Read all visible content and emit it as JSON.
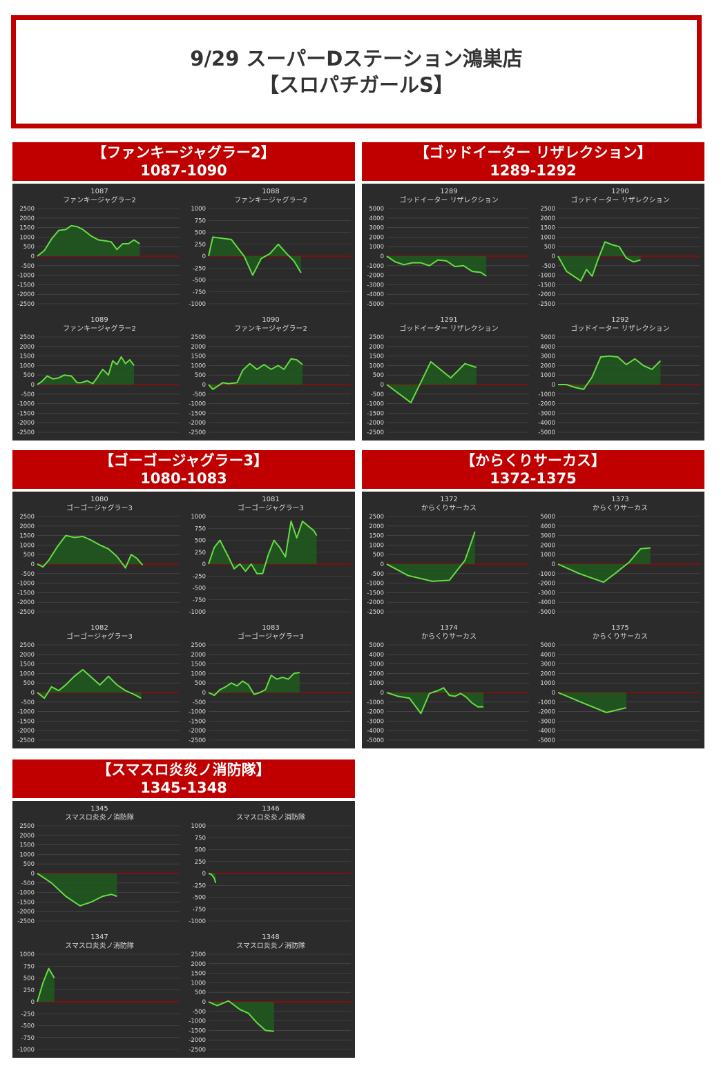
{
  "header": {
    "line1": "9/29 スーパーDステーション鴻巣店",
    "line2": "【スロパチガールS】"
  },
  "colors": {
    "accent": "#c00000",
    "panel_bg": "#2b2b2b",
    "line": "#66dd44",
    "fill": "#1e5a1e",
    "zero_line": "#b00000",
    "grid": "#505050",
    "text": "#dddddd"
  },
  "sections": [
    {
      "title": "【ファンキージャグラー2】",
      "range": "1087-1090",
      "charts": [
        {
          "num": "1087",
          "name": "ファンキージャグラー2",
          "ticks": [
            2500,
            2000,
            1500,
            1000,
            500,
            0,
            -500,
            -1000,
            -1500,
            -2000,
            -2500
          ],
          "x": [
            0,
            0.05,
            0.1,
            0.15,
            0.2,
            0.24,
            0.28,
            0.32,
            0.38,
            0.43,
            0.48,
            0.52,
            0.56,
            0.6,
            0.64,
            0.68,
            0.72
          ],
          "y": [
            0,
            300,
            900,
            1350,
            1400,
            1600,
            1550,
            1400,
            1050,
            850,
            800,
            750,
            350,
            650,
            650,
            850,
            650
          ]
        },
        {
          "num": "1088",
          "name": "ファンキージャグラー2",
          "ticks": [
            1000,
            750,
            500,
            250,
            0,
            -250,
            -500,
            -750,
            -1000
          ],
          "x": [
            0,
            0.03,
            0.16,
            0.25,
            0.31,
            0.37,
            0.43,
            0.49,
            0.55,
            0.6,
            0.65
          ],
          "y": [
            0,
            400,
            350,
            0,
            -400,
            -50,
            50,
            250,
            50,
            -100,
            -350
          ]
        },
        {
          "num": "1089",
          "name": "ファンキージャグラー2",
          "ticks": [
            2500,
            2000,
            1500,
            1000,
            500,
            0,
            -500,
            -1000,
            -1500,
            -2000,
            -2500
          ],
          "x": [
            0,
            0.03,
            0.07,
            0.11,
            0.15,
            0.19,
            0.24,
            0.28,
            0.31,
            0.35,
            0.39,
            0.42,
            0.46,
            0.5,
            0.53,
            0.56,
            0.59,
            0.62,
            0.65,
            0.68
          ],
          "y": [
            0,
            150,
            450,
            300,
            350,
            500,
            450,
            100,
            100,
            200,
            50,
            350,
            800,
            500,
            1250,
            1050,
            1450,
            1100,
            1300,
            1000
          ]
        },
        {
          "num": "1090",
          "name": "ファンキージャグラー2",
          "ticks": [
            2500,
            2000,
            1500,
            1000,
            500,
            0,
            -500,
            -1000,
            -1500,
            -2000,
            -2500
          ],
          "x": [
            0,
            0.03,
            0.1,
            0.14,
            0.2,
            0.24,
            0.29,
            0.34,
            0.39,
            0.44,
            0.49,
            0.53,
            0.58,
            0.62,
            0.66
          ],
          "y": [
            0,
            -250,
            100,
            50,
            100,
            750,
            1100,
            800,
            1050,
            800,
            1000,
            800,
            1350,
            1300,
            1050
          ]
        }
      ]
    },
    {
      "title": "【ゴッドイーター リザレクション】",
      "range": "1289-1292",
      "charts": [
        {
          "num": "1289",
          "name": "ゴッドイーター リザレクション",
          "ticks": [
            5000,
            4000,
            3000,
            2000,
            1000,
            0,
            -1000,
            -2000,
            -3000,
            -4000,
            -5000
          ],
          "x": [
            0,
            0.06,
            0.12,
            0.18,
            0.24,
            0.3,
            0.36,
            0.42,
            0.48,
            0.54,
            0.6,
            0.66,
            0.7
          ],
          "y": [
            0,
            -600,
            -900,
            -700,
            -700,
            -1000,
            -400,
            -500,
            -1100,
            -1000,
            -1600,
            -1700,
            -2100
          ]
        },
        {
          "num": "1290",
          "name": "ゴッドイーター リザレクション",
          "ticks": [
            2500,
            2000,
            1500,
            1000,
            500,
            0,
            -500,
            -1000,
            -1500,
            -2000,
            -2500
          ],
          "x": [
            0,
            0.06,
            0.12,
            0.16,
            0.2,
            0.24,
            0.28,
            0.33,
            0.38,
            0.43,
            0.48,
            0.53,
            0.58
          ],
          "y": [
            0,
            -800,
            -1100,
            -1300,
            -700,
            -1050,
            -200,
            750,
            600,
            500,
            -100,
            -300,
            -200
          ]
        },
        {
          "num": "1291",
          "name": "ゴッドイーター リザレクション",
          "ticks": [
            2500,
            2000,
            1500,
            1000,
            500,
            0,
            -500,
            -1000,
            -1500,
            -2000,
            -2500
          ],
          "x": [
            0,
            0.17,
            0.31,
            0.45,
            0.55,
            0.63
          ],
          "y": [
            0,
            -950,
            1200,
            350,
            1100,
            900
          ]
        },
        {
          "num": "1292",
          "name": "ゴッドイーター リザレクション",
          "ticks": [
            5000,
            4000,
            3000,
            2000,
            1000,
            0,
            -1000,
            -2000,
            -3000,
            -4000,
            -5000
          ],
          "x": [
            0,
            0.06,
            0.12,
            0.18,
            0.24,
            0.3,
            0.36,
            0.42,
            0.48,
            0.54,
            0.6,
            0.66,
            0.72
          ],
          "y": [
            0,
            0,
            -300,
            -500,
            800,
            2900,
            3000,
            2900,
            2100,
            2700,
            2000,
            1600,
            2500
          ]
        }
      ]
    },
    {
      "title": "【ゴーゴージャグラー3】",
      "range": "1080-1083",
      "charts": [
        {
          "num": "1080",
          "name": "ゴーゴージャグラー3",
          "ticks": [
            2500,
            2000,
            1500,
            1000,
            500,
            0,
            -500,
            -1000,
            -1500,
            -2000,
            -2500
          ],
          "x": [
            0,
            0.04,
            0.08,
            0.14,
            0.2,
            0.26,
            0.32,
            0.38,
            0.44,
            0.5,
            0.56,
            0.62,
            0.66,
            0.7,
            0.74
          ],
          "y": [
            0,
            -150,
            200,
            900,
            1500,
            1400,
            1450,
            1250,
            1000,
            800,
            400,
            -200,
            500,
            300,
            -50
          ]
        },
        {
          "num": "1081",
          "name": "ゴーゴージャグラー3",
          "ticks": [
            1000,
            750,
            500,
            250,
            0,
            -250,
            -500,
            -750,
            -1000
          ],
          "x": [
            0,
            0.04,
            0.08,
            0.14,
            0.18,
            0.22,
            0.26,
            0.3,
            0.34,
            0.38,
            0.42,
            0.46,
            0.5,
            0.54,
            0.58,
            0.62,
            0.66,
            0.7,
            0.74,
            0.76
          ],
          "y": [
            0,
            350,
            500,
            150,
            -100,
            0,
            -150,
            0,
            -200,
            -200,
            200,
            500,
            350,
            150,
            900,
            550,
            900,
            800,
            700,
            600
          ]
        },
        {
          "num": "1082",
          "name": "ゴーゴージャグラー3",
          "ticks": [
            2500,
            2000,
            1500,
            1000,
            500,
            0,
            -500,
            -1000,
            -1500,
            -2000,
            -2500
          ],
          "x": [
            0,
            0.05,
            0.1,
            0.15,
            0.2,
            0.26,
            0.32,
            0.38,
            0.44,
            0.5,
            0.56,
            0.62,
            0.68,
            0.73
          ],
          "y": [
            0,
            -300,
            300,
            100,
            400,
            850,
            1200,
            800,
            400,
            850,
            400,
            100,
            -100,
            -300
          ]
        },
        {
          "num": "1083",
          "name": "ゴーゴージャグラー3",
          "ticks": [
            2500,
            2000,
            1500,
            1000,
            500,
            0,
            -500,
            -1000,
            -1500,
            -2000,
            -2500
          ],
          "x": [
            0,
            0.04,
            0.08,
            0.12,
            0.16,
            0.2,
            0.24,
            0.28,
            0.32,
            0.36,
            0.4,
            0.44,
            0.48,
            0.52,
            0.56,
            0.6,
            0.64
          ],
          "y": [
            0,
            -150,
            150,
            300,
            500,
            350,
            600,
            400,
            -100,
            0,
            150,
            900,
            700,
            800,
            700,
            1000,
            1050
          ]
        }
      ]
    },
    {
      "title": "【からくりサーカス】",
      "range": "1372-1375",
      "charts": [
        {
          "num": "1372",
          "name": "からくりサーカス",
          "ticks": [
            2500,
            2000,
            1500,
            1000,
            500,
            0,
            -500,
            -1000,
            -1500,
            -2000,
            -2500
          ],
          "x": [
            0,
            0.15,
            0.32,
            0.44,
            0.55,
            0.62
          ],
          "y": [
            0,
            -600,
            -900,
            -850,
            200,
            1700
          ]
        },
        {
          "num": "1373",
          "name": "からくりサーカス",
          "ticks": [
            5000,
            4000,
            3000,
            2000,
            1000,
            0,
            -1000,
            -2000,
            -3000,
            -4000,
            -5000
          ],
          "x": [
            0,
            0.15,
            0.32,
            0.4,
            0.5,
            0.58,
            0.65
          ],
          "y": [
            0,
            -1000,
            -1900,
            -1000,
            200,
            1600,
            1700
          ]
        },
        {
          "num": "1374",
          "name": "からくりサーカス",
          "ticks": [
            5000,
            4000,
            3000,
            2000,
            1000,
            0,
            -1000,
            -2000,
            -3000,
            -4000,
            -5000
          ],
          "x": [
            0,
            0.08,
            0.16,
            0.24,
            0.3,
            0.36,
            0.4,
            0.44,
            0.48,
            0.52,
            0.56,
            0.6,
            0.64,
            0.68
          ],
          "y": [
            0,
            -400,
            -600,
            -2200,
            -100,
            200,
            500,
            -300,
            -400,
            -100,
            -500,
            -1100,
            -1500,
            -1500
          ]
        },
        {
          "num": "1375",
          "name": "からくりサーカス",
          "ticks": [
            5000,
            4000,
            3000,
            2000,
            1000,
            0,
            -1000,
            -2000,
            -3000,
            -4000,
            -5000
          ],
          "x": [
            0,
            0.16,
            0.34,
            0.48
          ],
          "y": [
            0,
            -1000,
            -2100,
            -1600
          ]
        }
      ]
    },
    {
      "title": "【スマスロ炎炎ノ消防隊】",
      "range": "1345-1348",
      "charts": [
        {
          "num": "1345",
          "name": "スマスロ炎炎ノ消防隊",
          "ticks": [
            2500,
            2000,
            1500,
            1000,
            500,
            0,
            -500,
            -1000,
            -1500,
            -2000,
            -2500
          ],
          "x": [
            0,
            0.1,
            0.2,
            0.3,
            0.38,
            0.46,
            0.52,
            0.56
          ],
          "y": [
            0,
            -500,
            -1200,
            -1700,
            -1500,
            -1200,
            -1100,
            -1200
          ]
        },
        {
          "num": "1346",
          "name": "スマスロ炎炎ノ消防隊",
          "ticks": [
            1000,
            750,
            500,
            250,
            0,
            -250,
            -500,
            -750,
            -1000
          ],
          "x": [
            0,
            0.02,
            0.04,
            0.05
          ],
          "y": [
            0,
            -20,
            -100,
            -200
          ]
        },
        {
          "num": "1347",
          "name": "スマスロ炎炎ノ消防隊",
          "ticks": [
            1000,
            750,
            500,
            250,
            0,
            -250,
            -500,
            -750,
            -1000
          ],
          "x": [
            0,
            0.04,
            0.08,
            0.12
          ],
          "y": [
            0,
            400,
            700,
            500
          ]
        },
        {
          "num": "1348",
          "name": "スマスロ炎炎ノ消防隊",
          "ticks": [
            2500,
            2000,
            1500,
            1000,
            500,
            0,
            -500,
            -1000,
            -1500,
            -2000,
            -2500
          ],
          "x": [
            0,
            0.06,
            0.14,
            0.22,
            0.28,
            0.34,
            0.4,
            0.46
          ],
          "y": [
            0,
            -200,
            50,
            -400,
            -600,
            -1100,
            -1500,
            -1550
          ]
        }
      ]
    }
  ]
}
